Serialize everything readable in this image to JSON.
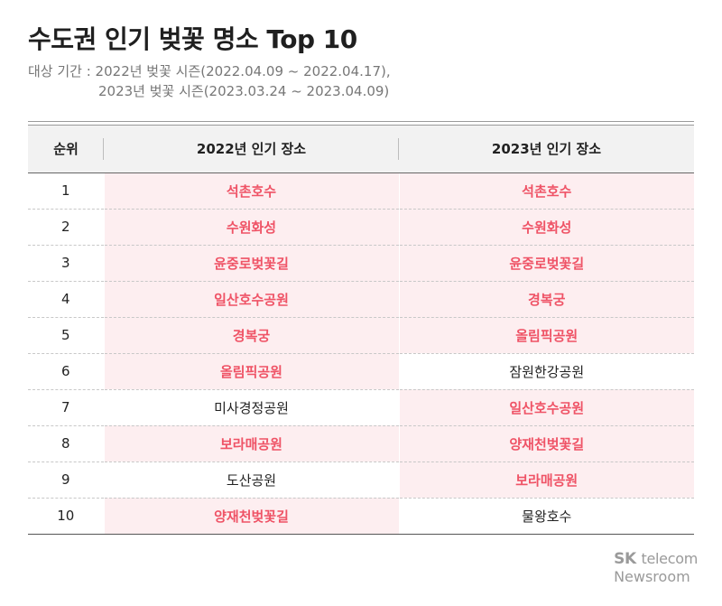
{
  "title": "수도권 인기 벚꽃 명소 Top 10",
  "period": {
    "line1": "대상 기간 : 2022년 벚꽃 시즌(2022.04.09 ~ 2022.04.17),",
    "line2": "2023년 벚꽃 시즌(2023.03.24 ~ 2023.04.09)"
  },
  "table": {
    "headers": [
      "순위",
      "2022년 인기 장소",
      "2023년 인기 장소"
    ],
    "rows": [
      {
        "rank": "1",
        "y2022": "석촌호수",
        "y2023": "석촌호수",
        "hl2022": true,
        "hl2023": true
      },
      {
        "rank": "2",
        "y2022": "수원화성",
        "y2023": "수원화성",
        "hl2022": true,
        "hl2023": true
      },
      {
        "rank": "3",
        "y2022": "윤중로벚꽃길",
        "y2023": "윤중로벚꽃길",
        "hl2022": true,
        "hl2023": true
      },
      {
        "rank": "4",
        "y2022": "일산호수공원",
        "y2023": "경복궁",
        "hl2022": true,
        "hl2023": true
      },
      {
        "rank": "5",
        "y2022": "경복궁",
        "y2023": "올림픽공원",
        "hl2022": true,
        "hl2023": true
      },
      {
        "rank": "6",
        "y2022": "올림픽공원",
        "y2023": "잠원한강공원",
        "hl2022": true,
        "hl2023": false
      },
      {
        "rank": "7",
        "y2022": "미사경정공원",
        "y2023": "일산호수공원",
        "hl2022": false,
        "hl2023": true
      },
      {
        "rank": "8",
        "y2022": "보라매공원",
        "y2023": "양재천벚꽃길",
        "hl2022": true,
        "hl2023": true
      },
      {
        "rank": "9",
        "y2022": "도산공원",
        "y2023": "보라매공원",
        "hl2022": false,
        "hl2023": true
      },
      {
        "rank": "10",
        "y2022": "양재천벚꽃길",
        "y2023": "물왕호수",
        "hl2022": true,
        "hl2023": false
      }
    ]
  },
  "colors": {
    "highlight_text": "#ef5366",
    "highlight_bg": "#fdeef0",
    "header_bg": "#f2f2f2"
  },
  "brand": {
    "sk": "SK",
    "telecom": "telecom",
    "newsroom": "Newsroom"
  }
}
